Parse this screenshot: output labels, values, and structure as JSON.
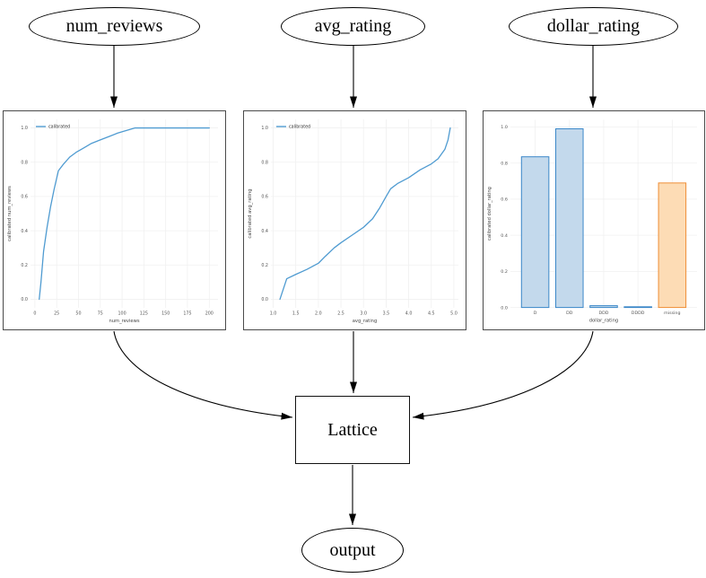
{
  "diagram": {
    "nodes": {
      "num_reviews": {
        "label": "num_reviews"
      },
      "avg_rating": {
        "label": "avg_rating"
      },
      "dollar_rating": {
        "label": "dollar_rating"
      },
      "lattice": {
        "label": "Lattice"
      },
      "output": {
        "label": "output"
      }
    }
  },
  "colors": {
    "line_blue": "#4f9bd1",
    "bar_blue_fill": "#c3d9ec",
    "bar_blue_edge": "#3a87c8",
    "bar_orange_fill": "#fddcb5",
    "bar_orange_edge": "#ee8d35",
    "grid": "#f0f0f0",
    "tick_text": "#555555",
    "axis_label_text": "#444444",
    "edge": "#000000"
  },
  "chart_data": [
    {
      "type": "line",
      "title": "",
      "xlabel": "num_reviews",
      "ylabel": "calibrated num_reviews",
      "legend": [
        "calibrated"
      ],
      "legend_position": "upper left",
      "grid": true,
      "xlim": [
        -5,
        210
      ],
      "ylim": [
        -0.05,
        1.05
      ],
      "xticks": [
        0,
        25,
        50,
        75,
        100,
        125,
        150,
        175,
        200
      ],
      "xtick_labels": [
        "0",
        "25",
        "50",
        "75",
        "100",
        "125",
        "150",
        "175",
        "200"
      ],
      "yticks": [
        0.0,
        0.2,
        0.4,
        0.6,
        0.8,
        1.0
      ],
      "ytick_labels": [
        "0.0",
        "0.2",
        "0.4",
        "0.6",
        "0.8",
        "1.0"
      ],
      "x": [
        5,
        7,
        10,
        14,
        18,
        22,
        27,
        33,
        40,
        48,
        55,
        65,
        75,
        85,
        95,
        105,
        115,
        200
      ],
      "y": [
        0.0,
        0.1,
        0.28,
        0.42,
        0.54,
        0.64,
        0.75,
        0.79,
        0.83,
        0.86,
        0.88,
        0.91,
        0.93,
        0.95,
        0.97,
        0.985,
        1.0,
        1.0
      ]
    },
    {
      "type": "line",
      "title": "",
      "xlabel": "avg_rating",
      "ylabel": "calibrated avg_rating",
      "legend": [
        "calibrated"
      ],
      "legend_position": "upper left",
      "grid": true,
      "xlim": [
        0.95,
        5.1
      ],
      "ylim": [
        -0.05,
        1.05
      ],
      "xticks": [
        1.0,
        1.5,
        2.0,
        2.5,
        3.0,
        3.5,
        4.0,
        4.5,
        5.0
      ],
      "xtick_labels": [
        "1.0",
        "1.5",
        "2.0",
        "2.5",
        "3.0",
        "3.5",
        "4.0",
        "4.5",
        "5.0"
      ],
      "yticks": [
        0.0,
        0.2,
        0.4,
        0.6,
        0.8,
        1.0
      ],
      "ytick_labels": [
        "0.0",
        "0.2",
        "0.4",
        "0.6",
        "0.8",
        "1.0"
      ],
      "x": [
        1.15,
        1.3,
        1.5,
        1.75,
        2.0,
        2.15,
        2.35,
        2.5,
        2.75,
        3.0,
        3.2,
        3.35,
        3.5,
        3.6,
        3.75,
        4.0,
        4.25,
        4.5,
        4.65,
        4.8,
        4.87,
        4.92
      ],
      "y": [
        0.0,
        0.12,
        0.145,
        0.175,
        0.21,
        0.25,
        0.3,
        0.33,
        0.375,
        0.42,
        0.47,
        0.53,
        0.6,
        0.645,
        0.675,
        0.71,
        0.755,
        0.79,
        0.82,
        0.875,
        0.93,
        1.0
      ]
    },
    {
      "type": "bar",
      "title": "",
      "xlabel": "dollar_rating",
      "ylabel": "calibrated dollar_rating",
      "grid": true,
      "ylim": [
        0,
        1.04
      ],
      "yticks": [
        0.0,
        0.2,
        0.4,
        0.6,
        0.8,
        1.0
      ],
      "ytick_labels": [
        "0.0",
        "0.2",
        "0.4",
        "0.6",
        "0.8",
        "1.0"
      ],
      "categories": [
        "D",
        "DD",
        "DDD",
        "DDDD",
        "missing"
      ],
      "values": [
        0.835,
        0.99,
        0.01,
        0.004,
        0.69
      ],
      "bar_styles": [
        "blue",
        "blue",
        "blue",
        "blue",
        "orange"
      ]
    }
  ]
}
